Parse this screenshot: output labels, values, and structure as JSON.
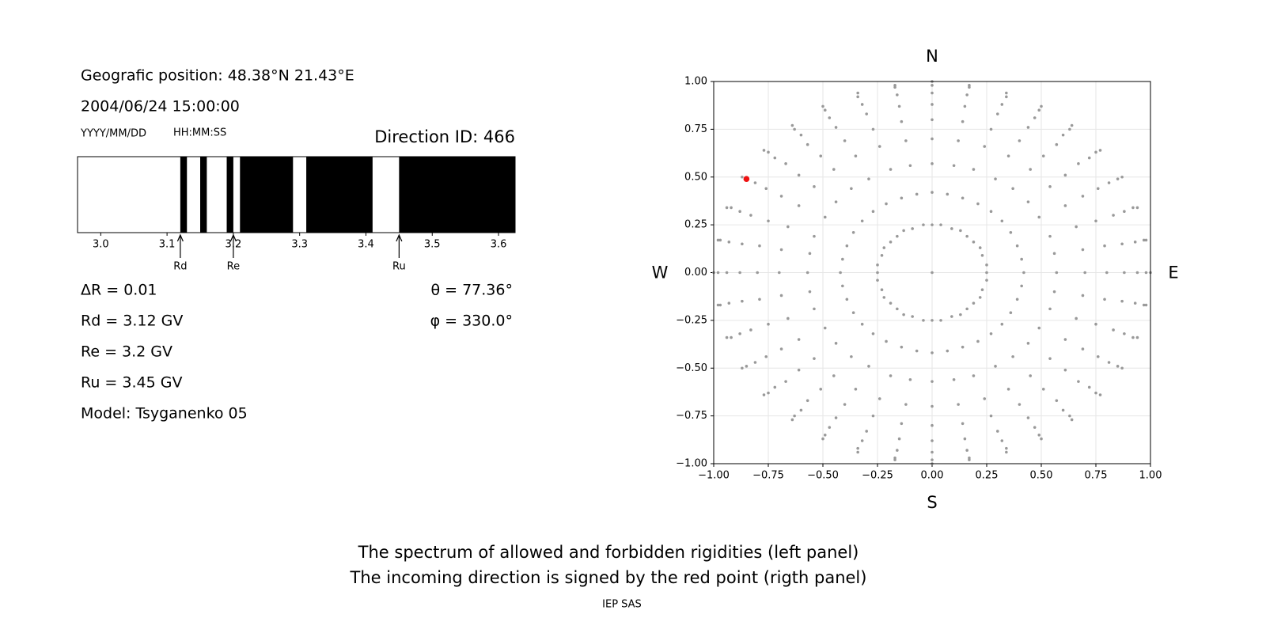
{
  "info": {
    "position": "Geografic position: 48.38°N 21.43°E",
    "datetime": "2004/06/24 15:00:00",
    "date_format": "YYYY/MM/DD",
    "time_format": "HH:MM:SS",
    "direction": "Direction ID: 466",
    "delta_r": "ΔR = 0.01",
    "rd": "Rd = 3.12 GV",
    "re": "Re = 3.2 GV",
    "ru": "Ru = 3.45 GV",
    "model": "Model: Tsyganenko 05",
    "theta": "θ = 77.36°",
    "phi": "φ = 330.0°"
  },
  "chart_data": [
    {
      "type": "spectrum",
      "xlim": [
        2.965,
        3.625
      ],
      "xticks": [
        {
          "value": 3,
          "label": "3.0"
        },
        3.1,
        3.2,
        3.3,
        3.4,
        3.5,
        3.6
      ],
      "bands": [
        [
          3.12,
          3.13
        ],
        [
          3.15,
          3.16
        ],
        [
          3.19,
          3.2
        ],
        [
          3.21,
          3.29
        ],
        [
          3.31,
          3.41
        ],
        [
          3.45,
          3.625
        ]
      ],
      "band_color": "#000000",
      "markers": [
        {
          "label": "Rd",
          "value": 3.12
        },
        {
          "label": "Re",
          "value": 3.2
        },
        {
          "label": "Ru",
          "value": 3.45
        }
      ]
    },
    {
      "type": "scatter",
      "xlim": [
        -1,
        1
      ],
      "ylim": [
        -1,
        1
      ],
      "grid": true,
      "xticks": [
        {
          "value": -1,
          "label": "−1.00"
        },
        {
          "value": -0.75,
          "label": "−0.75"
        },
        {
          "value": -0.5,
          "label": "−0.50"
        },
        {
          "value": -0.25,
          "label": "−0.25"
        },
        {
          "value": 0,
          "label": "0.00"
        },
        {
          "value": 0.25,
          "label": "0.25"
        },
        {
          "value": 0.5,
          "label": "0.50"
        },
        {
          "value": 0.75,
          "label": "0.75"
        },
        {
          "value": 1,
          "label": "1.00"
        }
      ],
      "yticks": [
        {
          "value": -1,
          "label": "−1.00"
        },
        {
          "value": -0.75,
          "label": "−0.75"
        },
        {
          "value": -0.5,
          "label": "−0.50"
        },
        {
          "value": -0.25,
          "label": "−0.25"
        },
        {
          "value": 0,
          "label": "0.00"
        },
        {
          "value": 0.25,
          "label": "0.25"
        },
        {
          "value": 0.5,
          "label": "0.50"
        },
        {
          "value": 0.75,
          "label": "0.75"
        },
        {
          "value": 1,
          "label": "1.00"
        }
      ],
      "directions": {
        "top": "N",
        "bottom": "S",
        "left": "W",
        "right": "E"
      },
      "series": [
        {
          "color": "#999999",
          "x": [
            0,
            0,
            0,
            0,
            0,
            0,
            0,
            0,
            0,
            0,
            0.04,
            0.07,
            0.1,
            0.12,
            0.14,
            0.15,
            0.16,
            0.17,
            0.17,
            0.09,
            0.14,
            0.19,
            0.24,
            0.27,
            0.3,
            0.32,
            0.34,
            0.34,
            0.13,
            0.21,
            0.29,
            0.35,
            0.4,
            0.44,
            0.47,
            0.49,
            0.5,
            0.16,
            0.27,
            0.37,
            0.45,
            0.51,
            0.57,
            0.6,
            0.63,
            0.64,
            0.19,
            0.32,
            0.44,
            0.54,
            0.61,
            0.67,
            0.72,
            0.75,
            0.77,
            0.22,
            0.36,
            0.49,
            0.61,
            0.69,
            0.76,
            0.81,
            0.85,
            0.87,
            0.23,
            0.39,
            0.54,
            0.66,
            0.75,
            0.83,
            0.88,
            0.92,
            0.94,
            0.25,
            0.41,
            0.56,
            0.69,
            0.79,
            0.87,
            0.93,
            0.97,
            0.98,
            0.25,
            0.42,
            0.57,
            0.7,
            0.8,
            0.88,
            0.94,
            0.98,
            1,
            0.25,
            0.41,
            0.56,
            0.69,
            0.79,
            0.87,
            0.93,
            0.97,
            0.98,
            0.23,
            0.39,
            0.54,
            0.66,
            0.75,
            0.83,
            0.88,
            0.92,
            0.94,
            0.22,
            0.36,
            0.49,
            0.61,
            0.69,
            0.76,
            0.81,
            0.85,
            0.87,
            0.19,
            0.32,
            0.44,
            0.54,
            0.61,
            0.67,
            0.72,
            0.75,
            0.77,
            0.16,
            0.27,
            0.37,
            0.45,
            0.51,
            0.57,
            0.6,
            0.63,
            0.64,
            0.13,
            0.21,
            0.29,
            0.35,
            0.4,
            0.44,
            0.47,
            0.49,
            0.5,
            0.09,
            0.14,
            0.19,
            0.24,
            0.27,
            0.3,
            0.32,
            0.34,
            0.34,
            0.04,
            0.07,
            0.1,
            0.12,
            0.14,
            0.15,
            0.16,
            0.17,
            0.17,
            0,
            0,
            0,
            0,
            0,
            0,
            0,
            0,
            0,
            -0.04,
            -0.07,
            -0.1,
            -0.12,
            -0.14,
            -0.15,
            -0.16,
            -0.17,
            -0.17,
            -0.09,
            -0.14,
            -0.19,
            -0.24,
            -0.27,
            -0.3,
            -0.32,
            -0.34,
            -0.34,
            -0.13,
            -0.21,
            -0.29,
            -0.35,
            -0.4,
            -0.44,
            -0.47,
            -0.49,
            -0.5,
            -0.16,
            -0.27,
            -0.37,
            -0.45,
            -0.51,
            -0.57,
            -0.6,
            -0.63,
            -0.64,
            -0.19,
            -0.32,
            -0.44,
            -0.54,
            -0.61,
            -0.67,
            -0.72,
            -0.75,
            -0.77,
            -0.22,
            -0.36,
            -0.49,
            -0.61,
            -0.69,
            -0.76,
            -0.81,
            -0.85,
            -0.87,
            -0.23,
            -0.39,
            -0.54,
            -0.66,
            -0.75,
            -0.83,
            -0.88,
            -0.92,
            -0.94,
            -0.25,
            -0.41,
            -0.56,
            -0.69,
            -0.79,
            -0.87,
            -0.93,
            -0.97,
            -0.98,
            -0.25,
            -0.42,
            -0.57,
            -0.7,
            -0.8,
            -0.88,
            -0.94,
            -0.98,
            -1,
            -0.25,
            -0.41,
            -0.56,
            -0.69,
            -0.79,
            -0.87,
            -0.93,
            -0.97,
            -0.98,
            -0.23,
            -0.39,
            -0.54,
            -0.66,
            -0.75,
            -0.83,
            -0.88,
            -0.92,
            -0.94,
            -0.22,
            -0.36,
            -0.49,
            -0.61,
            -0.69,
            -0.76,
            -0.81,
            -0.85,
            -0.87,
            -0.19,
            -0.32,
            -0.44,
            -0.54,
            -0.61,
            -0.67,
            -0.72,
            -0.75,
            -0.77,
            -0.16,
            -0.27,
            -0.37,
            -0.45,
            -0.51,
            -0.57,
            -0.6,
            -0.63,
            -0.64,
            -0.13,
            -0.21,
            -0.29,
            -0.35,
            -0.4,
            -0.44,
            -0.47,
            -0.49,
            -0.5,
            -0.09,
            -0.14,
            -0.19,
            -0.24,
            -0.27,
            -0.3,
            -0.32,
            -0.34,
            -0.34,
            -0.04,
            -0.07,
            -0.1,
            -0.12,
            -0.14,
            -0.15,
            -0.16,
            -0.17,
            -0.17
          ],
          "y": [
            0,
            0.25,
            0.42,
            0.57,
            0.7,
            0.8,
            0.88,
            0.94,
            0.98,
            1,
            0.25,
            0.41,
            0.56,
            0.69,
            0.79,
            0.87,
            0.93,
            0.97,
            0.98,
            0.23,
            0.39,
            0.54,
            0.66,
            0.75,
            0.83,
            0.88,
            0.92,
            0.94,
            0.22,
            0.36,
            0.49,
            0.61,
            0.69,
            0.76,
            0.81,
            0.85,
            0.87,
            0.19,
            0.32,
            0.44,
            0.54,
            0.61,
            0.67,
            0.72,
            0.75,
            0.77,
            0.16,
            0.27,
            0.37,
            0.45,
            0.51,
            0.57,
            0.6,
            0.63,
            0.64,
            0.13,
            0.21,
            0.29,
            0.35,
            0.4,
            0.44,
            0.47,
            0.49,
            0.5,
            0.09,
            0.14,
            0.19,
            0.24,
            0.27,
            0.3,
            0.32,
            0.34,
            0.34,
            0.04,
            0.07,
            0.1,
            0.12,
            0.14,
            0.15,
            0.16,
            0.17,
            0.17,
            0,
            0,
            0,
            0,
            0,
            0,
            0,
            0,
            0,
            -0.04,
            -0.07,
            -0.1,
            -0.12,
            -0.14,
            -0.15,
            -0.16,
            -0.17,
            -0.17,
            -0.09,
            -0.14,
            -0.19,
            -0.24,
            -0.27,
            -0.3,
            -0.32,
            -0.34,
            -0.34,
            -0.13,
            -0.21,
            -0.29,
            -0.35,
            -0.4,
            -0.44,
            -0.47,
            -0.49,
            -0.5,
            -0.16,
            -0.27,
            -0.37,
            -0.45,
            -0.51,
            -0.57,
            -0.6,
            -0.63,
            -0.64,
            -0.19,
            -0.32,
            -0.44,
            -0.54,
            -0.61,
            -0.67,
            -0.72,
            -0.75,
            -0.77,
            -0.22,
            -0.36,
            -0.49,
            -0.61,
            -0.69,
            -0.76,
            -0.81,
            -0.85,
            -0.87,
            -0.23,
            -0.39,
            -0.54,
            -0.66,
            -0.75,
            -0.83,
            -0.88,
            -0.92,
            -0.94,
            -0.25,
            -0.41,
            -0.56,
            -0.69,
            -0.79,
            -0.87,
            -0.93,
            -0.97,
            -0.98,
            -0.25,
            -0.42,
            -0.57,
            -0.7,
            -0.8,
            -0.88,
            -0.94,
            -0.98,
            -1,
            -0.25,
            -0.41,
            -0.56,
            -0.69,
            -0.79,
            -0.87,
            -0.93,
            -0.97,
            -0.98,
            -0.23,
            -0.39,
            -0.54,
            -0.66,
            -0.75,
            -0.83,
            -0.88,
            -0.92,
            -0.94,
            -0.22,
            -0.36,
            -0.49,
            -0.61,
            -0.69,
            -0.76,
            -0.81,
            -0.85,
            -0.87,
            -0.19,
            -0.32,
            -0.44,
            -0.54,
            -0.61,
            -0.67,
            -0.72,
            -0.75,
            -0.77,
            -0.16,
            -0.27,
            -0.37,
            -0.45,
            -0.51,
            -0.57,
            -0.6,
            -0.63,
            -0.64,
            -0.13,
            -0.21,
            -0.29,
            -0.35,
            -0.4,
            -0.44,
            -0.47,
            -0.49,
            -0.5,
            -0.09,
            -0.14,
            -0.19,
            -0.24,
            -0.27,
            -0.3,
            -0.32,
            -0.34,
            -0.34,
            -0.04,
            -0.07,
            -0.1,
            -0.12,
            -0.14,
            -0.15,
            -0.16,
            -0.17,
            -0.17,
            0,
            0,
            0,
            0,
            0,
            0,
            0,
            0,
            0,
            0.04,
            0.07,
            0.1,
            0.12,
            0.14,
            0.15,
            0.16,
            0.17,
            0.17,
            0.09,
            0.14,
            0.19,
            0.24,
            0.27,
            0.3,
            0.32,
            0.34,
            0.34,
            0.13,
            0.21,
            0.29,
            0.35,
            0.4,
            0.44,
            0.47,
            0.49,
            0.5,
            0.16,
            0.27,
            0.37,
            0.45,
            0.51,
            0.57,
            0.6,
            0.63,
            0.64,
            0.19,
            0.32,
            0.44,
            0.54,
            0.61,
            0.67,
            0.72,
            0.75,
            0.77,
            0.22,
            0.36,
            0.49,
            0.61,
            0.69,
            0.76,
            0.81,
            0.85,
            0.87,
            0.23,
            0.39,
            0.54,
            0.66,
            0.75,
            0.83,
            0.88,
            0.92,
            0.94,
            0.25,
            0.41,
            0.56,
            0.69,
            0.79,
            0.87,
            0.93,
            0.97,
            0.98
          ]
        },
        {
          "color": "#ee1111",
          "x": [
            -0.85
          ],
          "y": [
            0.49
          ]
        }
      ]
    }
  ],
  "footer": {
    "lines": [
      "The spectrum of allowed and forbidden rigidities (left panel)",
      "The incoming direction is signed by the red point (rigth panel)"
    ],
    "credit": "IEP SAS"
  }
}
